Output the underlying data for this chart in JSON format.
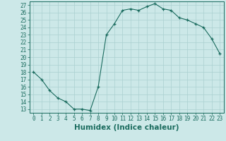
{
  "x": [
    0,
    1,
    2,
    3,
    4,
    5,
    6,
    7,
    8,
    9,
    10,
    11,
    12,
    13,
    14,
    15,
    16,
    17,
    18,
    19,
    20,
    21,
    22,
    23
  ],
  "y": [
    18,
    17,
    15.5,
    14.5,
    14,
    13,
    13,
    12.8,
    16,
    23,
    24.5,
    26.3,
    26.5,
    26.3,
    26.8,
    27.2,
    26.5,
    26.3,
    25.3,
    25.0,
    24.5,
    24.0,
    22.5,
    20.5
  ],
  "line_color": "#1a6b5e",
  "marker": "+",
  "bg_color": "#cce8e8",
  "grid_color": "#aad0d0",
  "xlabel": "Humidex (Indice chaleur)",
  "ylabel_ticks": [
    13,
    14,
    15,
    16,
    17,
    18,
    19,
    20,
    21,
    22,
    23,
    24,
    25,
    26,
    27
  ],
  "xlim": [
    -0.5,
    23.5
  ],
  "ylim": [
    12.5,
    27.5
  ],
  "xticks": [
    0,
    1,
    2,
    3,
    4,
    5,
    6,
    7,
    8,
    9,
    10,
    11,
    12,
    13,
    14,
    15,
    16,
    17,
    18,
    19,
    20,
    21,
    22,
    23
  ],
  "tick_fontsize": 5.5,
  "label_fontsize": 7.5
}
